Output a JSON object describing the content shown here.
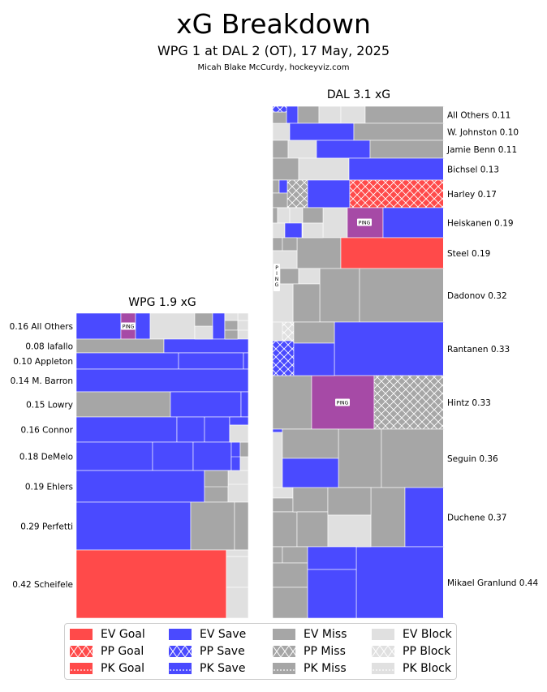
{
  "header": {
    "title": "xG Breakdown",
    "subtitle": "WPG 1 at DAL 2 (OT), 17 May, 2025",
    "credit": "Micah Blake McCurdy, hockeyviz.com"
  },
  "ping_label": "PING",
  "chart_data": {
    "type": "treemap",
    "title": "xG Breakdown",
    "teams": [
      {
        "name": "WPG 1.9 xG",
        "label_side": "left",
        "players": [
          {
            "label": "0.16 All Others",
            "xg": 0.16
          },
          {
            "label": "0.08 Iafallo",
            "xg": 0.08
          },
          {
            "label": "0.10 Appleton",
            "xg": 0.1
          },
          {
            "label": "0.14 M. Barron",
            "xg": 0.14
          },
          {
            "label": "0.15 Lowry",
            "xg": 0.15
          },
          {
            "label": "0.16 Connor",
            "xg": 0.16
          },
          {
            "label": "0.18 DeMelo",
            "xg": 0.18
          },
          {
            "label": "0.19 Ehlers",
            "xg": 0.19
          },
          {
            "label": "0.29 Perfetti",
            "xg": 0.29
          },
          {
            "label": "0.42 Scheifele",
            "xg": 0.42
          }
        ]
      },
      {
        "name": "DAL 3.1 xG",
        "label_side": "right",
        "players": [
          {
            "label": "All Others 0.11",
            "xg": 0.11
          },
          {
            "label": "W. Johnston 0.10",
            "xg": 0.1
          },
          {
            "label": "Jamie Benn 0.11",
            "xg": 0.11
          },
          {
            "label": "Bichsel 0.13",
            "xg": 0.13
          },
          {
            "label": "Harley 0.17",
            "xg": 0.17
          },
          {
            "label": "Heiskanen 0.19",
            "xg": 0.19
          },
          {
            "label": "Steel 0.19",
            "xg": 0.19
          },
          {
            "label": "Dadonov 0.32",
            "xg": 0.32
          },
          {
            "label": "Rantanen 0.33",
            "xg": 0.33
          },
          {
            "label": "Hintz 0.33",
            "xg": 0.33
          },
          {
            "label": "Seguin 0.36",
            "xg": 0.36
          },
          {
            "label": "Duchene 0.37",
            "xg": 0.37
          },
          {
            "label": "Mikael Granlund 0.44",
            "xg": 0.44
          }
        ]
      }
    ],
    "legend": [
      {
        "label": "EV Goal",
        "color": "#ff4a4a",
        "pattern": "solid"
      },
      {
        "label": "EV Save",
        "color": "#4a4aff",
        "pattern": "solid"
      },
      {
        "label": "EV Miss",
        "color": "#a6a6a6",
        "pattern": "solid"
      },
      {
        "label": "EV Block",
        "color": "#e0e0e0",
        "pattern": "solid"
      },
      {
        "label": "PP Goal",
        "color": "#ff4a4a",
        "pattern": "cross"
      },
      {
        "label": "PP Save",
        "color": "#4a4aff",
        "pattern": "cross"
      },
      {
        "label": "PP Miss",
        "color": "#a6a6a6",
        "pattern": "cross"
      },
      {
        "label": "PP Block",
        "color": "#e0e0e0",
        "pattern": "cross"
      },
      {
        "label": "PK Goal",
        "color": "#ff4a4a",
        "pattern": "dots"
      },
      {
        "label": "PK Save",
        "color": "#4a4aff",
        "pattern": "dots"
      },
      {
        "label": "PK Miss",
        "color": "#a6a6a6",
        "pattern": "dots"
      },
      {
        "label": "PK Block",
        "color": "#e0e0e0",
        "pattern": "dots"
      }
    ]
  }
}
